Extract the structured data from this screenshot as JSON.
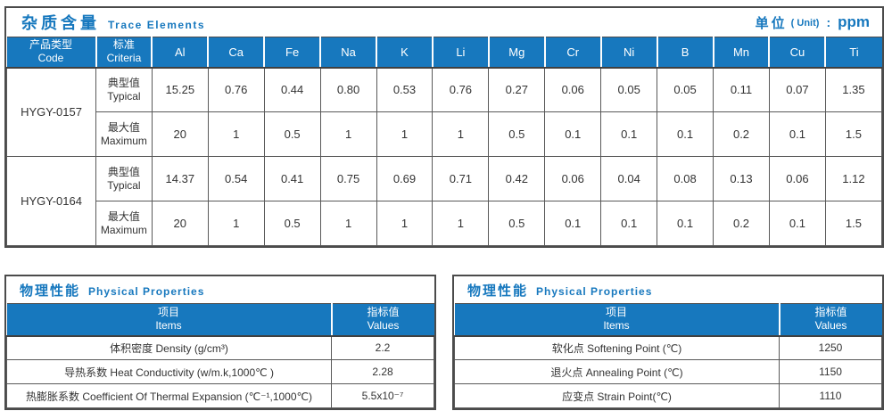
{
  "colors": {
    "accent_blue": "#1778BE",
    "border_dark": "#4B4B4B",
    "cell_border": "#595959",
    "text": "#333333"
  },
  "trace": {
    "title_zh": "杂质含量",
    "title_en": "Trace Elements",
    "unit_zh": "单位",
    "unit_en": "( Unit)",
    "unit_colon": ":",
    "unit_value": "ppm",
    "header": {
      "col_code_zh": "产品类型",
      "col_code_en": "Code",
      "col_criteria_zh": "标准",
      "col_criteria_en": "Criteria",
      "elements": [
        "Al",
        "Ca",
        "Fe",
        "Na",
        "K",
        "Li",
        "Mg",
        "Cr",
        "Ni",
        "B",
        "Mn",
        "Cu",
        "Ti"
      ]
    },
    "rows": [
      {
        "code": "HYGY-0157",
        "criteria_zh": "典型值",
        "criteria_en": "Typical",
        "values": [
          "15.25",
          "0.76",
          "0.44",
          "0.80",
          "0.53",
          "0.76",
          "0.27",
          "0.06",
          "0.05",
          "0.05",
          "0.11",
          "0.07",
          "1.35"
        ]
      },
      {
        "criteria_zh": "最大值",
        "criteria_en": "Maximum",
        "values": [
          "20",
          "1",
          "0.5",
          "1",
          "1",
          "1",
          "0.5",
          "0.1",
          "0.1",
          "0.1",
          "0.2",
          "0.1",
          "1.5"
        ]
      },
      {
        "code": "HYGY-0164",
        "criteria_zh": "典型值",
        "criteria_en": "Typical",
        "values": [
          "14.37",
          "0.54",
          "0.41",
          "0.75",
          "0.69",
          "0.71",
          "0.42",
          "0.06",
          "0.04",
          "0.08",
          "0.13",
          "0.06",
          "1.12"
        ]
      },
      {
        "criteria_zh": "最大值",
        "criteria_en": "Maximum",
        "values": [
          "20",
          "1",
          "0.5",
          "1",
          "1",
          "1",
          "0.5",
          "0.1",
          "0.1",
          "0.1",
          "0.2",
          "0.1",
          "1.5"
        ]
      }
    ]
  },
  "physical_left": {
    "title_zh": "物理性能",
    "title_en": "Physical Properties",
    "col_items_zh": "项目",
    "col_items_en": "Items",
    "col_values_zh": "指标值",
    "col_values_en": "Values",
    "rows": [
      {
        "item": "体积密度 Density (g/cm³)",
        "value": "2.2"
      },
      {
        "item": "导热系数 Heat Conductivity (w/m.k,1000℃ )",
        "value": "2.28"
      },
      {
        "item": "热膨胀系数 Coefficient Of Thermal Expansion (℃⁻¹,1000℃)",
        "value": "5.5x10⁻⁷"
      }
    ]
  },
  "physical_right": {
    "title_zh": "物理性能",
    "title_en": "Physical Properties",
    "col_items_zh": "项目",
    "col_items_en": "Items",
    "col_values_zh": "指标值",
    "col_values_en": "Values",
    "rows": [
      {
        "item": "软化点 Softening Point (℃)",
        "value": "1250"
      },
      {
        "item": "退火点 Annealing Point (℃)",
        "value": "1150"
      },
      {
        "item": "应变点 Strain Point(℃)",
        "value": "1110"
      }
    ]
  }
}
